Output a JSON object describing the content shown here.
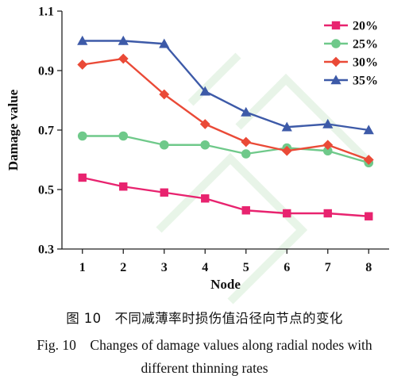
{
  "chart_data": {
    "type": "line",
    "xlabel": "Node",
    "ylabel": "Damage value",
    "x": [
      1,
      2,
      3,
      4,
      5,
      6,
      7,
      8
    ],
    "xlim": [
      0.5,
      8.5
    ],
    "ylim": [
      0.3,
      1.1
    ],
    "yticks": [
      "0.3",
      "0.5",
      "0.7",
      "0.9",
      "1.1"
    ],
    "grid": false,
    "legend_position": "top-right",
    "series": [
      {
        "name": "20%",
        "color": "#e8236f",
        "marker": "square",
        "values": [
          0.54,
          0.51,
          0.49,
          0.47,
          0.43,
          0.42,
          0.42,
          0.41
        ]
      },
      {
        "name": "25%",
        "color": "#6fc98a",
        "marker": "circle",
        "values": [
          0.68,
          0.68,
          0.65,
          0.65,
          0.62,
          0.64,
          0.63,
          0.59
        ]
      },
      {
        "name": "30%",
        "color": "#ea4a37",
        "marker": "diamond",
        "values": [
          0.92,
          0.94,
          0.82,
          0.72,
          0.66,
          0.63,
          0.65,
          0.6
        ]
      },
      {
        "name": "35%",
        "color": "#3d5aa8",
        "marker": "triangle",
        "values": [
          1.0,
          1.0,
          0.99,
          0.83,
          0.76,
          0.71,
          0.72,
          0.7
        ]
      }
    ]
  },
  "caption": {
    "cn": "图 10　不同减薄率时损伤值沿径向节点的变化",
    "en_line1": "Fig. 10　Changes of damage values along radial nodes with",
    "en_line2": "different thinning rates"
  }
}
